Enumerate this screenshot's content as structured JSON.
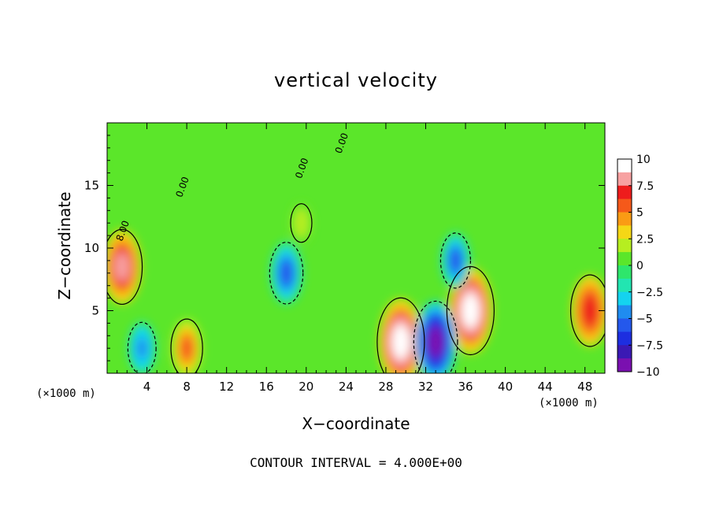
{
  "chart_data": {
    "type": "heatmap",
    "title": "vertical velocity",
    "xlabel": "X−coordinate",
    "ylabel": "Z−coordinate",
    "x_unit": "(×1000 m)",
    "footer": "CONTOUR INTERVAL = 4.000E+00",
    "xlim": [
      0,
      50
    ],
    "ylim": [
      0,
      20
    ],
    "x_ticks": [
      4,
      8,
      12,
      16,
      20,
      24,
      28,
      32,
      36,
      40,
      44,
      48
    ],
    "y_ticks": [
      5,
      10,
      15
    ],
    "colorbar": {
      "min": -10,
      "max": 10,
      "ticks": [
        "10",
        "7.5",
        "5",
        "2.5",
        "0",
        "−2.5",
        "−5",
        "−7.5",
        "−10"
      ],
      "colors": [
        "#ffffff",
        "#f7a1a1",
        "#ee1c1c",
        "#f5591a",
        "#fa9b14",
        "#f5d716",
        "#b6ee20",
        "#5be62a",
        "#2ee66b",
        "#22e5b1",
        "#14d3ef",
        "#1f8cf0",
        "#2458ec",
        "#1d2ee0",
        "#3a19b4",
        "#7a10b0"
      ]
    },
    "contour_labels": [
      "0.00",
      "0.00",
      "0.00",
      "8.00"
    ],
    "features": [
      {
        "x": 1.5,
        "z": 8.5,
        "w": 8.0,
        "desc": "strong updraft"
      },
      {
        "x": 48.5,
        "z": 5.0,
        "w": 7.5,
        "desc": "updraft"
      },
      {
        "x": 29.5,
        "z": 2.5,
        "w": 10.0,
        "desc": "updraft"
      },
      {
        "x": 36.5,
        "z": 5.0,
        "w": 10.0,
        "desc": "updraft"
      },
      {
        "x": 33.0,
        "z": 2.5,
        "w": -9.0,
        "desc": "downdraft"
      },
      {
        "x": 35.0,
        "z": 9.0,
        "w": -5.0,
        "desc": "downdraft"
      },
      {
        "x": 18.0,
        "z": 8.0,
        "w": -6.0,
        "desc": "downdraft"
      },
      {
        "x": 3.5,
        "z": 2.0,
        "w": -4.5,
        "desc": "downdraft"
      },
      {
        "x": 8.0,
        "z": 2.0,
        "w": 5.5,
        "desc": "updraft"
      },
      {
        "x": 19.5,
        "z": 12.0,
        "w": 2.5,
        "desc": "weak updraft"
      }
    ]
  }
}
